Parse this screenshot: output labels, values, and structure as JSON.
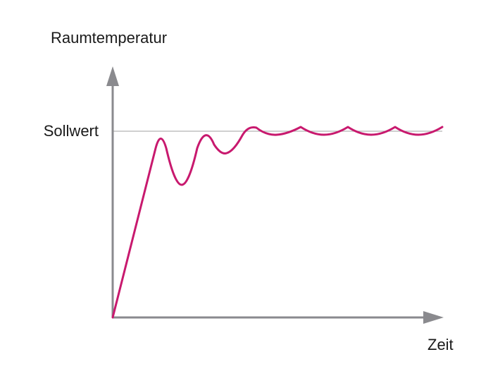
{
  "labels": {
    "y_axis": "Raumtemperatur",
    "setpoint": "Sollwert",
    "x_axis": "Zeit"
  }
}
